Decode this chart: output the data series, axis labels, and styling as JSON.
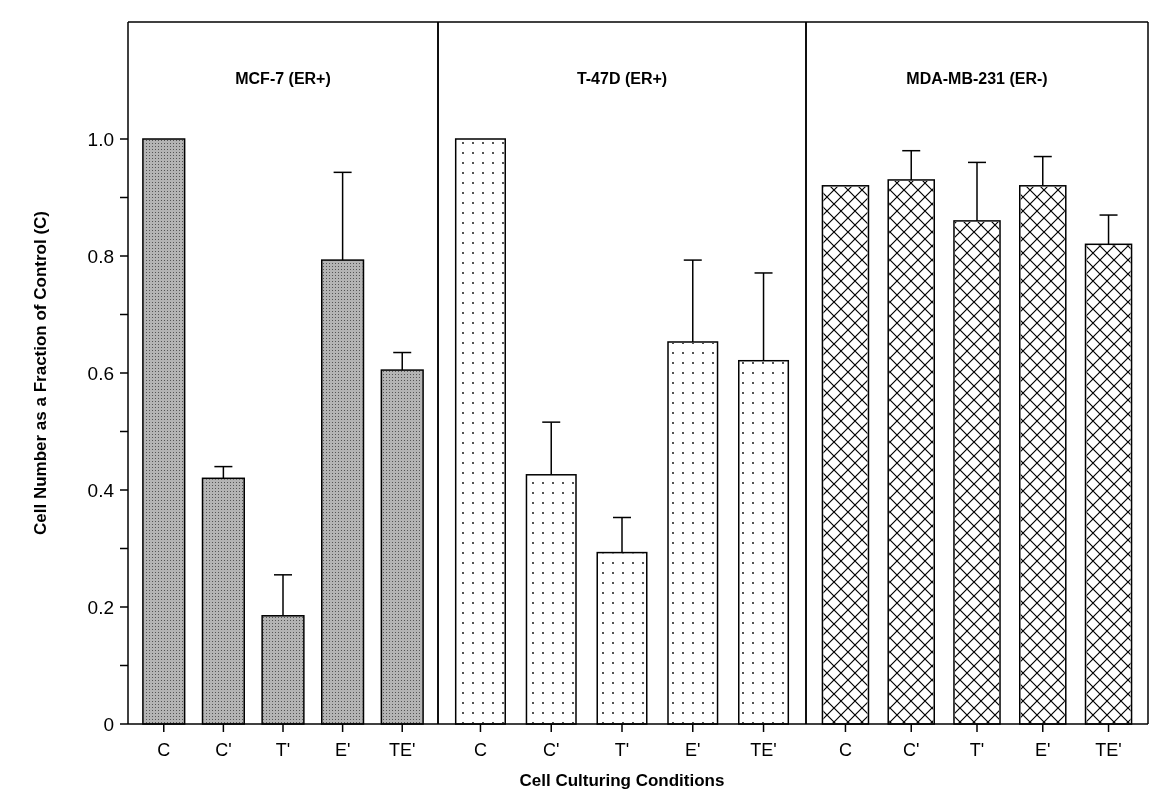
{
  "chart_data": [
    {
      "type": "bar",
      "title": "MCF-7 (ER+)",
      "ylabel": "Cell Number as a Fraction of Control (C)",
      "categories": [
        "C",
        "C'",
        "T'",
        "E'",
        "TE'"
      ],
      "values": [
        1.0,
        0.42,
        0.185,
        0.793,
        0.605
      ],
      "errors": [
        null,
        0.02,
        0.07,
        0.15,
        0.03
      ],
      "color": "#b4b4b4",
      "ylim": [
        0,
        1.2
      ],
      "yticks": [
        0,
        {
          "value": 0.1,
          "label": null
        },
        0.2,
        {
          "value": 0.3,
          "label": null
        },
        0.4,
        {
          "value": 0.5,
          "label": null
        },
        0.6,
        {
          "value": 0.7,
          "label": null
        },
        0.8,
        {
          "value": 0.9,
          "label": null
        },
        {
          "value": 1,
          "label": "1.0"
        }
      ]
    },
    {
      "type": "bar",
      "title": "T-47D (ER+)",
      "xlabel": "Cell Culturing Conditions",
      "categories": [
        "C",
        "C'",
        "T'",
        "E'",
        "TE'"
      ],
      "values": [
        1.0,
        0.426,
        0.293,
        0.653,
        0.621
      ],
      "errors": [
        null,
        0.09,
        0.06,
        0.14,
        0.15
      ],
      "color": "#ffffff",
      "ylim": [
        0,
        1.2
      ],
      "tick_labels": "x"
    },
    {
      "type": "bar",
      "title": "MDA-MB-231 (ER-)",
      "categories": [
        "C",
        "C'",
        "T'",
        "E'",
        "TE'"
      ],
      "values": [
        0.92,
        0.93,
        0.86,
        0.92,
        0.82
      ],
      "errors": [
        null,
        0.05,
        0.1,
        0.05,
        0.05
      ],
      "color": "#ffffff",
      "ylim": [
        0,
        1.2
      ],
      "tick_labels": "x"
    }
  ]
}
